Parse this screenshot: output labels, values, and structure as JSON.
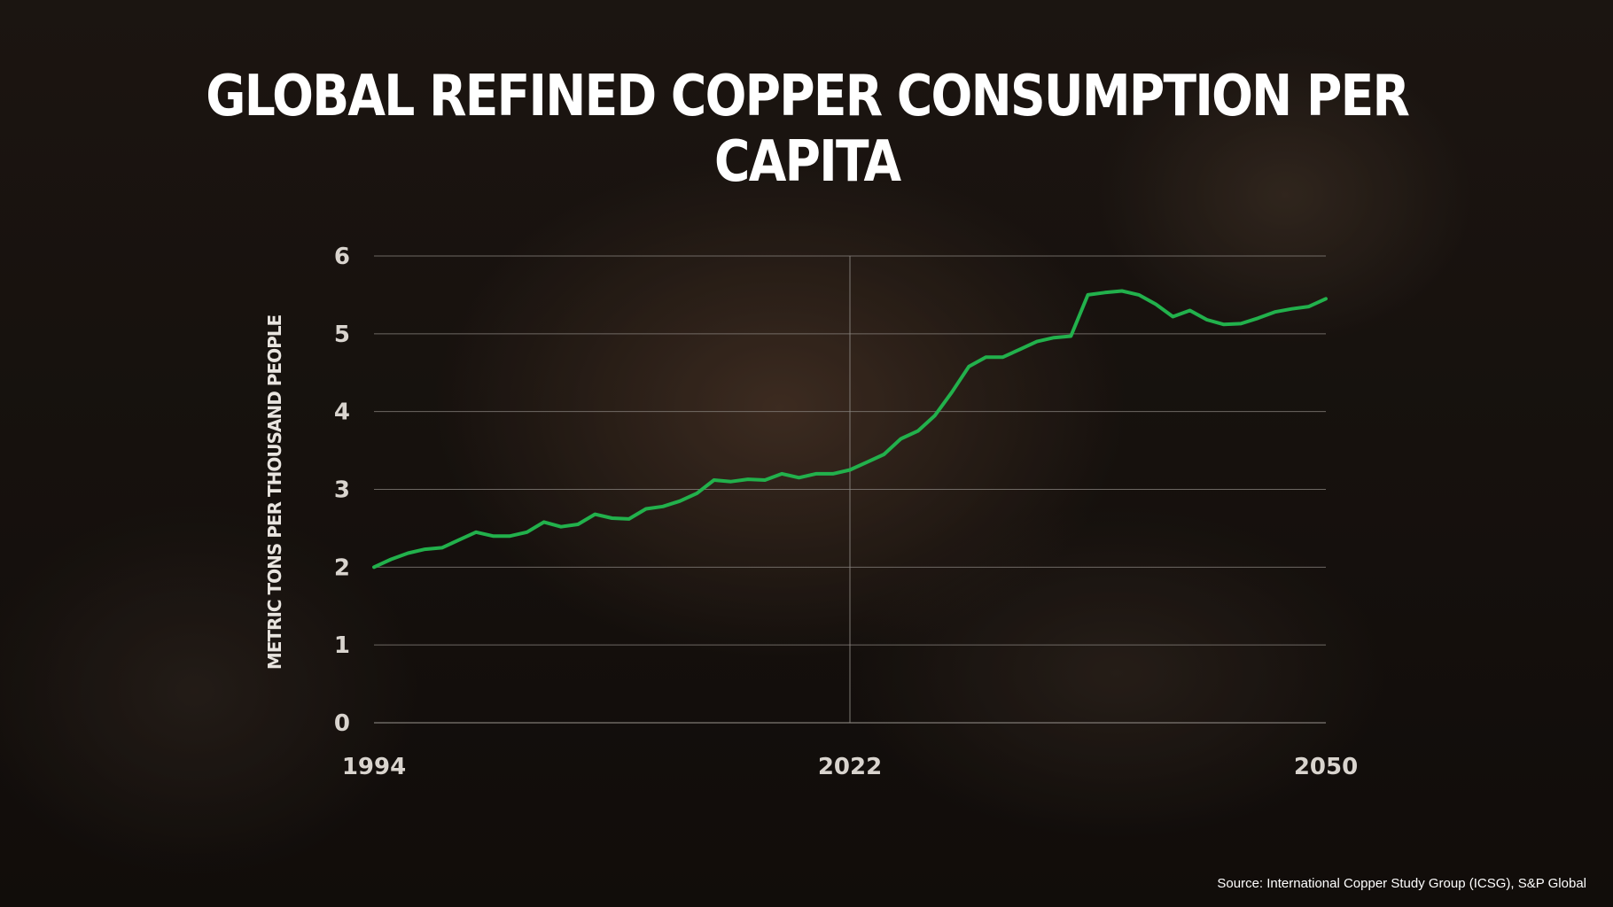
{
  "title": "GLOBAL REFINED COPPER CONSUMPTION PER CAPITA",
  "source": "Source: International Copper Study Group (ICSG), S&P Global",
  "colors": {
    "line": "#22b14c",
    "grid": "#8a8580",
    "text": "#ffffff"
  },
  "chart_data": {
    "type": "line",
    "title": "GLOBAL REFINED COPPER CONSUMPTION PER CAPITA",
    "xlabel": "",
    "ylabel": "METRIC TONS PER THOUSAND PEOPLE",
    "xlim": [
      1994,
      2050
    ],
    "ylim": [
      0,
      6
    ],
    "x_ticks": [
      "1994",
      "2022",
      "2050"
    ],
    "y_ticks": [
      "0",
      "1",
      "2",
      "3",
      "4",
      "5",
      "6"
    ],
    "grid": "horizontal",
    "reference_line_x": 2022,
    "x": [
      1994,
      1995,
      1996,
      1997,
      1998,
      1999,
      2000,
      2001,
      2002,
      2003,
      2004,
      2005,
      2006,
      2007,
      2008,
      2009,
      2010,
      2011,
      2012,
      2013,
      2014,
      2015,
      2016,
      2017,
      2018,
      2019,
      2020,
      2021,
      2022,
      2023,
      2024,
      2025,
      2026,
      2027,
      2028,
      2029,
      2030,
      2031,
      2032,
      2033,
      2034,
      2035,
      2036,
      2037,
      2038,
      2039,
      2040,
      2041,
      2042,
      2043,
      2044,
      2045,
      2046,
      2047,
      2048,
      2049,
      2050
    ],
    "series": [
      {
        "values": [
          2.0,
          2.1,
          2.18,
          2.23,
          2.25,
          2.35,
          2.45,
          2.4,
          2.4,
          2.45,
          2.58,
          2.52,
          2.55,
          2.68,
          2.63,
          2.62,
          2.75,
          2.78,
          2.85,
          2.95,
          3.12,
          3.1,
          3.13,
          3.12,
          3.2,
          3.15,
          3.2,
          3.2,
          3.25,
          3.35,
          3.45,
          3.65,
          3.75,
          3.95,
          4.25,
          4.58,
          4.7,
          4.7,
          4.8,
          4.9,
          4.95,
          4.97,
          5.5,
          5.53,
          5.55,
          5.5,
          5.38,
          5.22,
          5.3,
          5.18,
          5.12,
          5.13,
          5.2,
          5.28,
          5.32,
          5.35,
          5.45
        ]
      }
    ]
  }
}
